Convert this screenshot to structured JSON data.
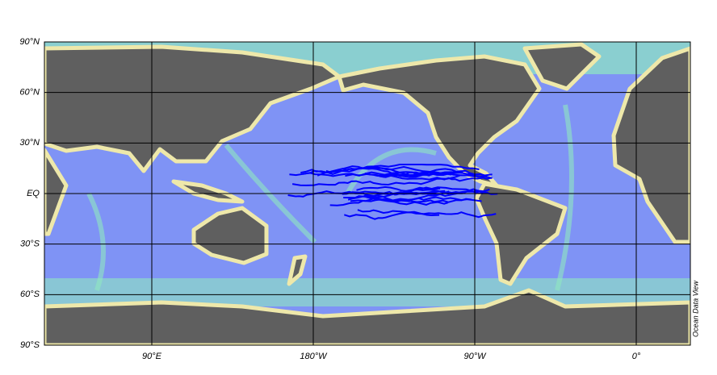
{
  "map": {
    "lat_labels": [
      "90°N",
      "60°N",
      "30°N",
      "EQ",
      "30°S",
      "60°S",
      "90°S"
    ],
    "lon_labels": [
      "90°E",
      "180°W",
      "90°W",
      "0°"
    ],
    "credit": "Ocean Data View"
  }
}
